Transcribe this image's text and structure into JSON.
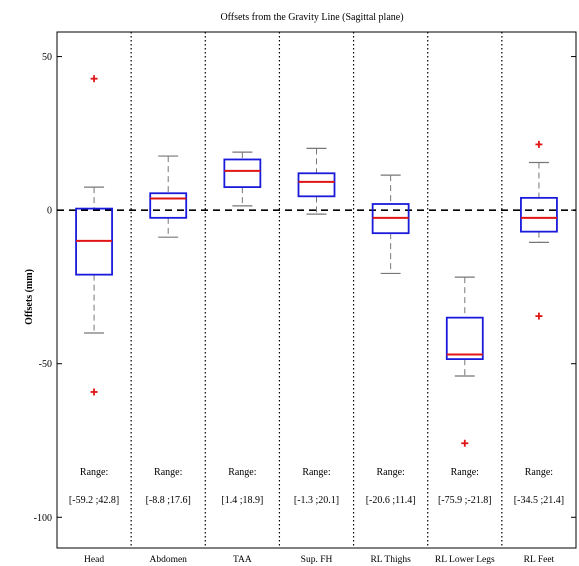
{
  "chart_data": {
    "type": "box",
    "title": "Offsets from the Gravity Line (Sagittal plane)",
    "xlabel": "",
    "ylabel": "Offsets (mm)",
    "ylim": [
      -110,
      58
    ],
    "yticks": [
      50,
      0,
      -50,
      -100
    ],
    "grid": false,
    "reference_line": 0,
    "range_label": "Range:",
    "categories": [
      "Head",
      "Abdomen",
      "TAA",
      "Sup. FH",
      "RL Thighs",
      "RL Lower Legs",
      "RL Feet"
    ],
    "boxes": [
      {
        "whisker_low": -40,
        "q1": -21,
        "median": -10,
        "q3": 0.5,
        "whisker_high": 7.5,
        "outliers": [
          42.8,
          -59.2
        ],
        "range_text": "[-59.2 ;42.8]"
      },
      {
        "whisker_low": -8.8,
        "q1": -2.5,
        "median": 3.8,
        "q3": 5.5,
        "whisker_high": 17.6,
        "outliers": [],
        "range_text": "[-8.8 ;17.6]"
      },
      {
        "whisker_low": 1.4,
        "q1": 7.5,
        "median": 12.8,
        "q3": 16.5,
        "whisker_high": 18.9,
        "outliers": [],
        "range_text": "[1.4 ;18.9]"
      },
      {
        "whisker_low": -1.3,
        "q1": 4.5,
        "median": 9.2,
        "q3": 12,
        "whisker_high": 20.1,
        "outliers": [],
        "range_text": "[-1.3 ;20.1]"
      },
      {
        "whisker_low": -20.6,
        "q1": -7.5,
        "median": -2.5,
        "q3": 2,
        "whisker_high": 11.4,
        "outliers": [],
        "range_text": "[-20.6 ;11.4]"
      },
      {
        "whisker_low": -54,
        "q1": -48.5,
        "median": -47,
        "q3": -35,
        "whisker_high": -21.8,
        "outliers": [
          -75.9
        ],
        "range_text": "[-75.9 ;-21.8]"
      },
      {
        "whisker_low": -10.5,
        "q1": -7,
        "median": -2.5,
        "q3": 4,
        "whisker_high": 15.5,
        "outliers": [
          21.4,
          -34.5
        ],
        "range_text": "[-34.5 ;21.4]"
      }
    ],
    "colors": {
      "box": "#1a1adb",
      "median": "#e01515",
      "outlier": "#e01515",
      "whisker": "#777777"
    }
  }
}
